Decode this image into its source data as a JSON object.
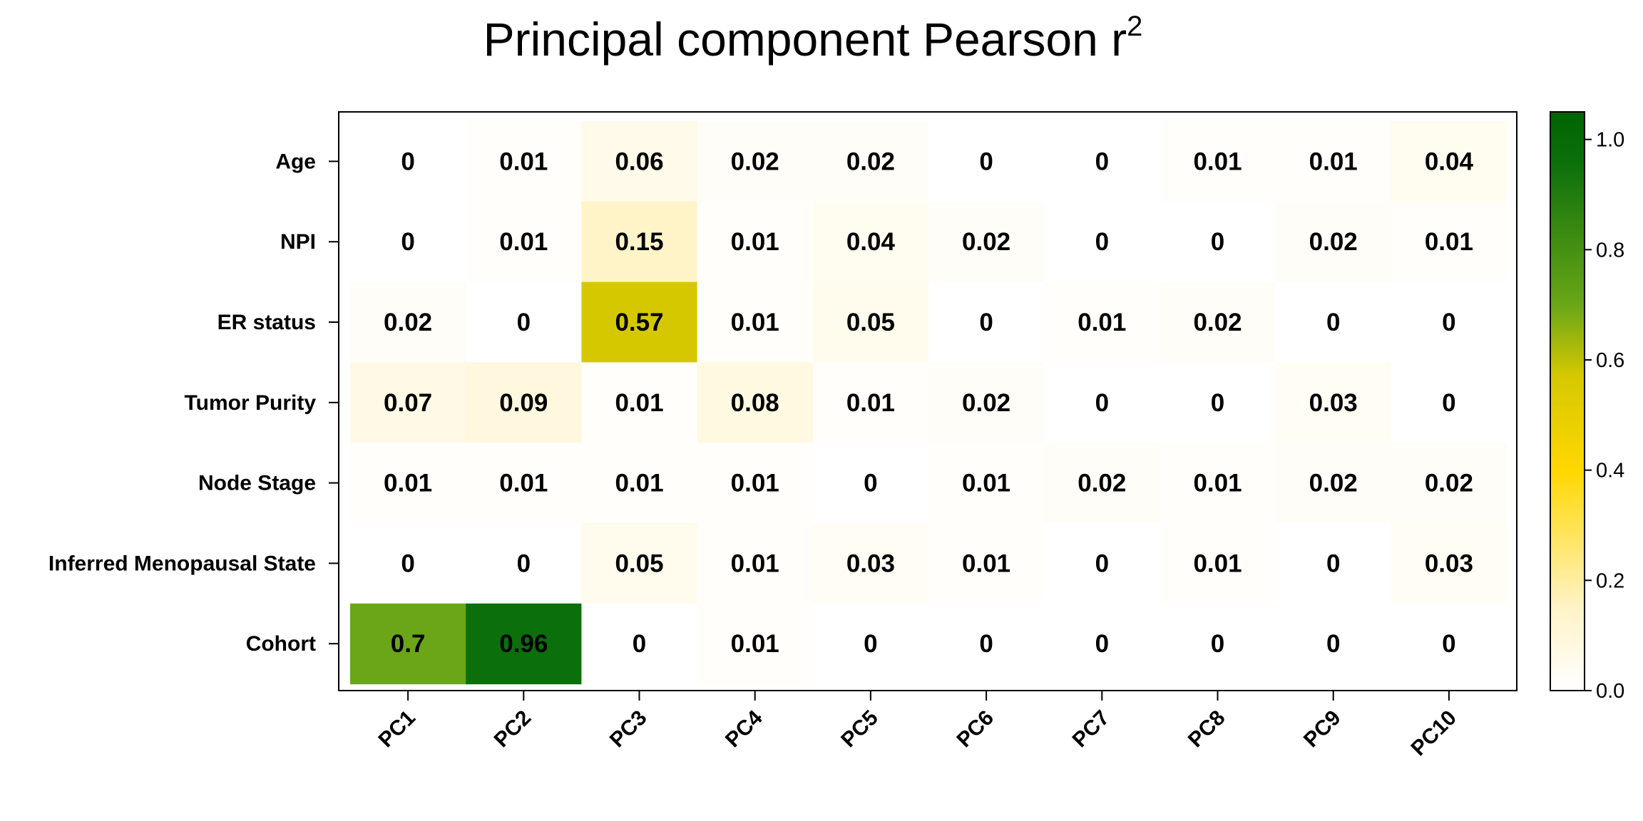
{
  "chart_data": {
    "type": "heatmap",
    "title": "Principal component Pearson r",
    "title_superscript": "2",
    "rows": [
      "Age",
      "NPI",
      "ER status",
      "Tumor Purity",
      "Node Stage",
      "Inferred Menopausal State",
      "Cohort"
    ],
    "columns": [
      "PC1",
      "PC2",
      "PC3",
      "PC4",
      "PC5",
      "PC6",
      "PC7",
      "PC8",
      "PC9",
      "PC10"
    ],
    "values": [
      [
        "0",
        "0.01",
        "0.06",
        "0.02",
        "0.02",
        "0",
        "0",
        "0.01",
        "0.01",
        "0.04"
      ],
      [
        "0",
        "0.01",
        "0.15",
        "0.01",
        "0.04",
        "0.02",
        "0",
        "0",
        "0.02",
        "0.01"
      ],
      [
        "0.02",
        "0",
        "0.57",
        "0.01",
        "0.05",
        "0",
        "0.01",
        "0.02",
        "0",
        "0"
      ],
      [
        "0.07",
        "0.09",
        "0.01",
        "0.08",
        "0.01",
        "0.02",
        "0",
        "0",
        "0.03",
        "0"
      ],
      [
        "0.01",
        "0.01",
        "0.01",
        "0.01",
        "0",
        "0.01",
        "0.02",
        "0.01",
        "0.02",
        "0.02"
      ],
      [
        "0",
        "0",
        "0.05",
        "0.01",
        "0.03",
        "0.01",
        "0",
        "0.01",
        "0",
        "0.03"
      ],
      [
        "0.7",
        "0.96",
        "0",
        "0.01",
        "0",
        "0",
        "0",
        "0",
        "0",
        "0"
      ]
    ],
    "colorbar": {
      "range": [
        0,
        1.05
      ],
      "ticks": [
        "0.0",
        "0.2",
        "0.4",
        "0.6",
        "0.8",
        "1.0"
      ],
      "tick_values": [
        0,
        0.2,
        0.4,
        0.6,
        0.8,
        1.0
      ],
      "colors": [
        "#ffffff",
        "#fff3c8",
        "#ffd700",
        "#d6c800",
        "#6aa618",
        "#0b6f0b",
        "#006400"
      ],
      "color_stops": [
        0,
        0.15,
        0.4,
        0.57,
        0.7,
        0.96,
        1.05
      ]
    }
  }
}
